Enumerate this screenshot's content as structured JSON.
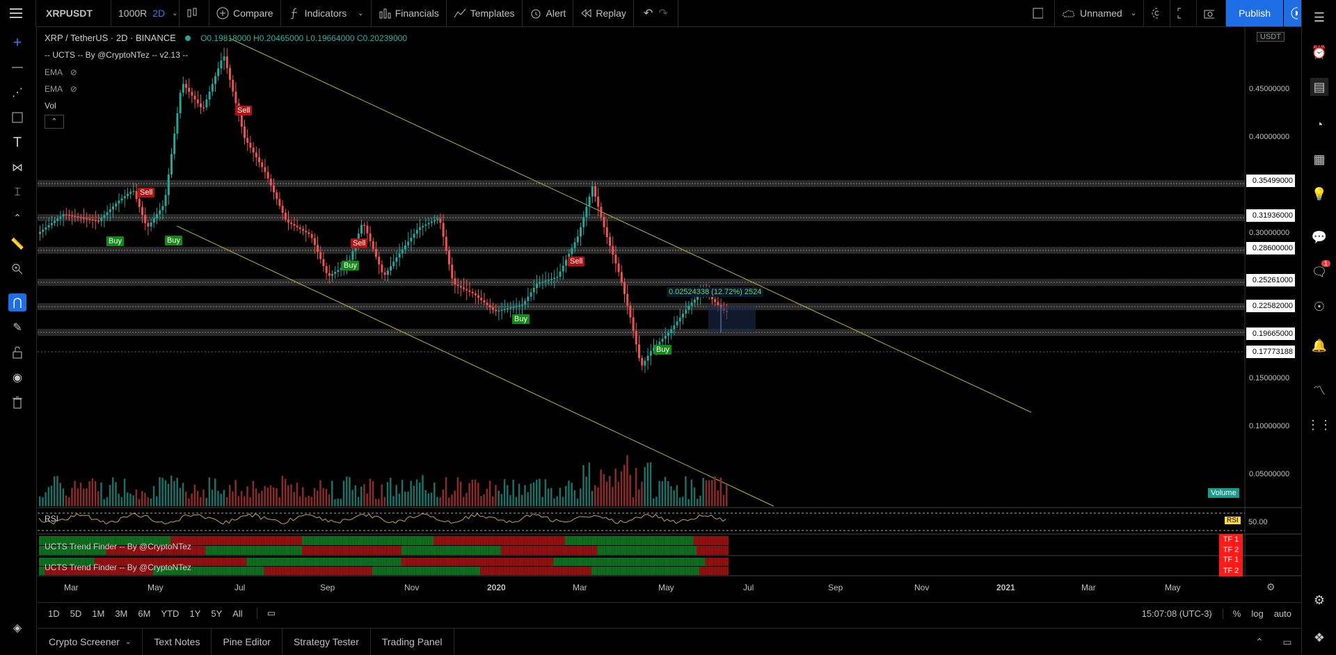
{
  "toolbar": {
    "menu_icon": "hamburger-icon",
    "symbol": "XRPUSDT",
    "interval_prefix": "1000R",
    "interval": "2D",
    "compare": "Compare",
    "indicators": "Indicators",
    "financials": "Financials",
    "templates": "Templates",
    "alert": "Alert",
    "replay": "Replay",
    "layout_name": "Unnamed",
    "publish": "Publish"
  },
  "chart": {
    "title": "XRP / TetherUS · 2D · BINANCE",
    "ohlc": "O0.19818000  H0.20465000  L0.19664000  C0.20239000",
    "indicator_ucts": "-- UCTS -- By @CryptoNTez -- v2.13 --",
    "ema1": "EMA",
    "ema2": "EMA",
    "vol": "Vol",
    "currency_badge": "USDT",
    "measure_label": "0.02524338 (12.72%) 2524",
    "volume_badge": "Volume",
    "rsi_label": "RSI",
    "rsi_badge": "RSI",
    "rsi_level": "50.00",
    "trend_finder_1": "UCTS Trend Finder -- By @CryptoNTez",
    "trend_finder_2": "UCTS Trend Finder -- By @CryptoNTez",
    "tf1": "TF 1",
    "tf2": "TF 2",
    "tf3": "TF 1",
    "tf4": "TF 2"
  },
  "price_axis": {
    "ticks": [
      "0.45000000",
      "0.40000000",
      "0.30000000",
      "0.15000000",
      "0.10000000",
      "0.05000000"
    ],
    "level_labels": [
      "0.35499000",
      "0.31936000",
      "0.28600000",
      "0.25261000",
      "0.22582000",
      "0.19665000",
      "0.17773188"
    ]
  },
  "time_axis": [
    "Mar",
    "May",
    "Jul",
    "Sep",
    "Nov",
    "2020",
    "Mar",
    "May",
    "Jul",
    "Sep",
    "Nov",
    "2021",
    "Mar",
    "May"
  ],
  "signals": [
    "Sell",
    "Sell",
    "Buy",
    "Buy",
    "Sell",
    "Buy",
    "Buy",
    "Sell",
    "Buy"
  ],
  "ranges": [
    "1D",
    "5D",
    "1M",
    "3M",
    "6M",
    "YTD",
    "1Y",
    "5Y",
    "All"
  ],
  "status": {
    "time": "15:07:08 (UTC-3)",
    "percent": "%",
    "log": "log",
    "auto": "auto"
  },
  "bottom_tabs": [
    "Crypto Screener",
    "Text Notes",
    "Pine Editor",
    "Strategy Tester",
    "Trading Panel"
  ],
  "notifications_badge": "1",
  "colors": {
    "up": "#26a69a",
    "down": "#ef5350",
    "channel": "#b5b53a",
    "publish": "#1e6ee6",
    "buy": "#138a13",
    "sell": "#b31212",
    "tf": "#ff1a1a"
  }
}
